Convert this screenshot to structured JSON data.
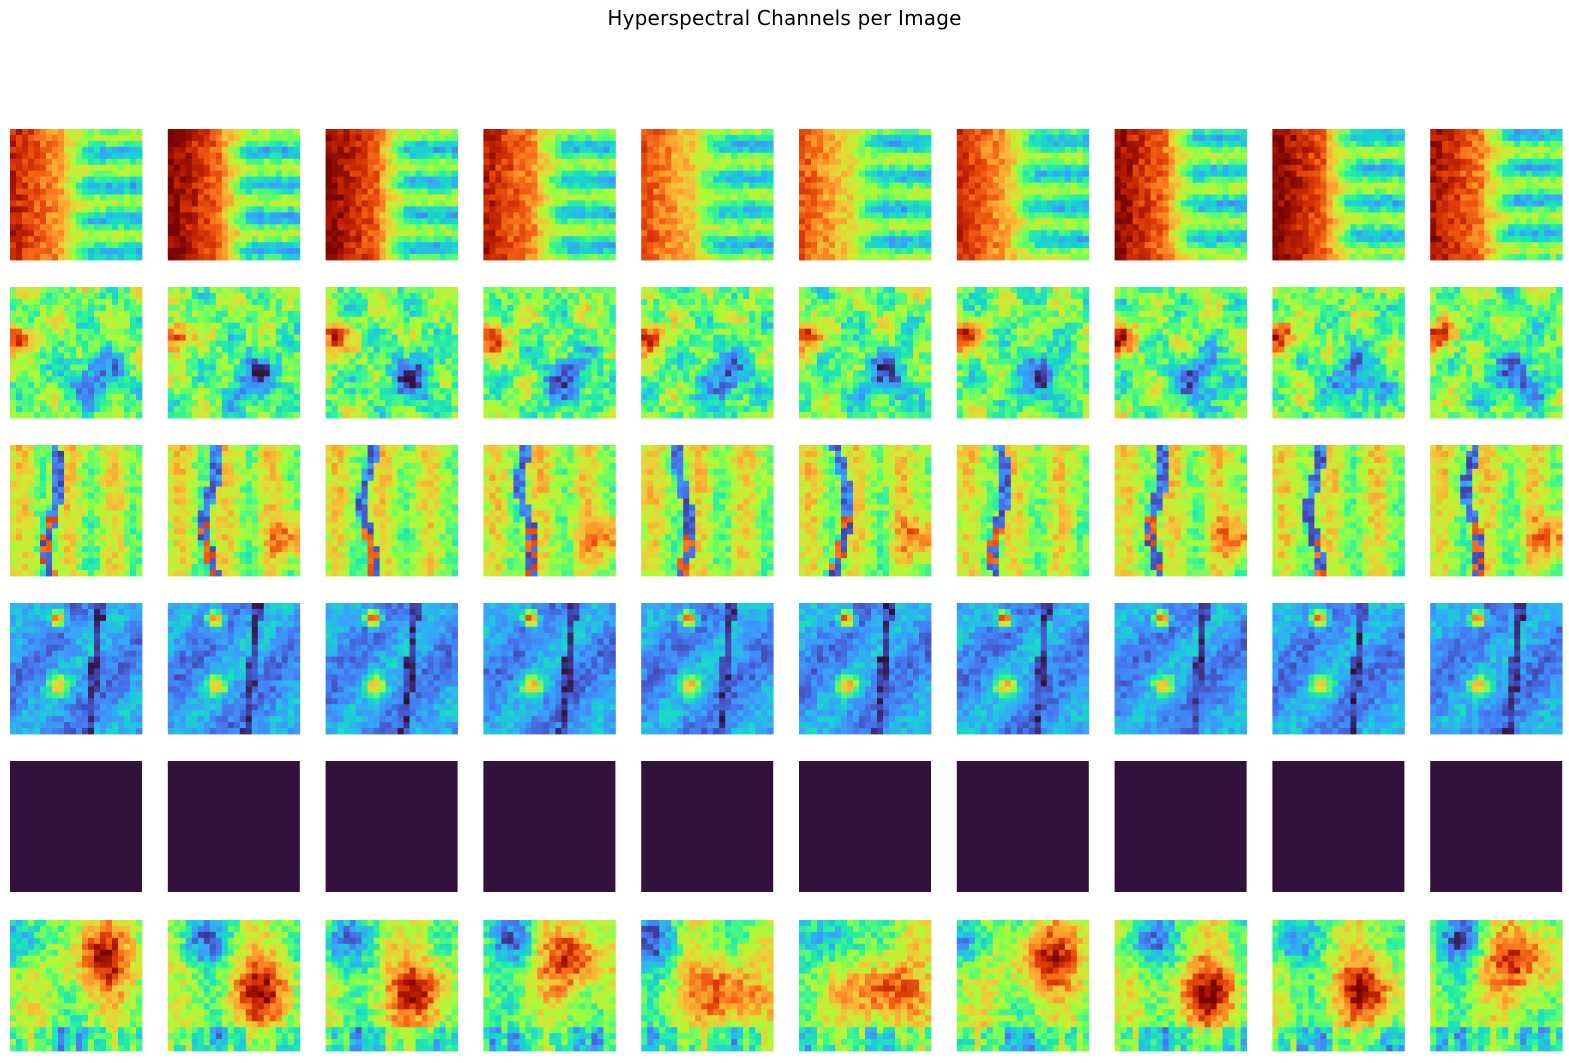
{
  "figure": {
    "title": "Hyperspectral Channels per Image"
  },
  "chart_data": {
    "type": "heatmap",
    "title": "Hyperspectral Channels per Image",
    "layout": {
      "rows": 6,
      "columns": 10
    },
    "colormap": [
      "#30123b",
      "#4145ab",
      "#4675ed",
      "#39a2fc",
      "#1bcfd4",
      "#24eca6",
      "#61fc6c",
      "#a4fc3b",
      "#d1e834",
      "#f3c63a",
      "#fe9b2d",
      "#f36315",
      "#d93806",
      "#b11901",
      "#7a0402"
    ],
    "axes": "off",
    "rows": [
      {
        "pattern": "left-hot-stripes",
        "uniform": false
      },
      {
        "pattern": "mottled-canopy",
        "uniform": false
      },
      {
        "pattern": "vertical-channel-stream",
        "uniform": false
      },
      {
        "pattern": "cool-with-hotspots",
        "uniform": false
      },
      {
        "pattern": "uniform",
        "uniform": true,
        "fill": "#30123b"
      },
      {
        "pattern": "mixed-right-hot",
        "uniform": false
      }
    ]
  }
}
